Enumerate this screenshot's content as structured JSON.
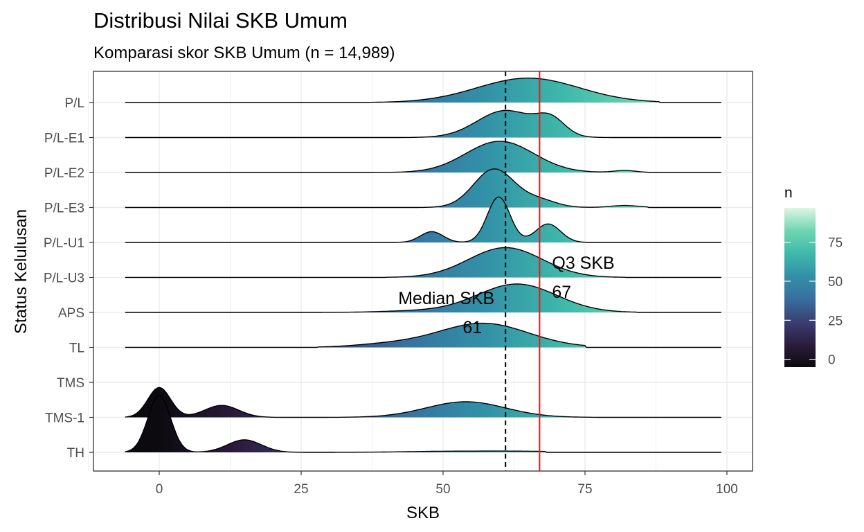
{
  "chart_data": {
    "type": "area",
    "subtype": "ridgeline",
    "title": "Distribusi Nilai SKB Umum",
    "subtitle": "Komparasi skor SKB Umum (n = 14,989)",
    "xlabel": "SKB",
    "ylabel": "Status Kelulusan",
    "xlim": [
      -15,
      105
    ],
    "x_ticks": [
      0,
      25,
      50,
      75,
      100
    ],
    "grid": true,
    "categories": [
      "P/L",
      "P/L-E1",
      "P/L-E2",
      "P/L-E3",
      "P/L-U1",
      "P/L-U3",
      "APS",
      "TL",
      "TMS",
      "TMS-1",
      "TH"
    ],
    "series": [
      {
        "category": "P/L",
        "baseline_range": [
          -6,
          99
        ],
        "peaks": [
          [
            65,
            9,
            0.86
          ]
        ],
        "support": [
          37,
          88
        ]
      },
      {
        "category": "P/L-E1",
        "baseline_range": [
          -6,
          99
        ],
        "peaks": [
          [
            61,
            5,
            0.95
          ],
          [
            69,
            2.5,
            0.55
          ]
        ],
        "support": [
          43,
          80
        ]
      },
      {
        "category": "P/L-E2",
        "baseline_range": [
          -6,
          99
        ],
        "peaks": [
          [
            60,
            6,
            1.1
          ],
          [
            82,
            2,
            0.07
          ]
        ],
        "support": [
          35,
          86
        ]
      },
      {
        "category": "P/L-E3",
        "baseline_range": [
          -6,
          99
        ],
        "peaks": [
          [
            59,
            3.6,
            1.35
          ],
          [
            67,
            3,
            0.25
          ],
          [
            82,
            2.5,
            0.07
          ]
        ],
        "support": [
          45,
          86
        ]
      },
      {
        "category": "P/L-U1",
        "baseline_range": [
          -6,
          99
        ],
        "peaks": [
          [
            59.8,
            2,
            1.6
          ],
          [
            48,
            2,
            0.38
          ],
          [
            68.5,
            2.2,
            0.65
          ]
        ],
        "support": [
          42,
          75
        ]
      },
      {
        "category": "P/L-U3",
        "baseline_range": [
          -6,
          99
        ],
        "peaks": [
          [
            61,
            6.5,
            1.05
          ]
        ],
        "support": [
          40,
          82
        ]
      },
      {
        "category": "APS",
        "baseline_range": [
          -6,
          99
        ],
        "peaks": [
          [
            63,
            7,
            1.0
          ],
          [
            45,
            6,
            0.05
          ]
        ],
        "support": [
          25,
          84
        ]
      },
      {
        "category": "TL",
        "baseline_range": [
          -6,
          99
        ],
        "peaks": [
          [
            57,
            8,
            0.85
          ],
          [
            40,
            6,
            0.1
          ]
        ],
        "support": [
          28,
          75
        ]
      },
      {
        "category": "TMS",
        "baseline_range": null,
        "peaks": [],
        "support": null
      },
      {
        "category": "TMS-1",
        "baseline_range": [
          -6,
          99
        ],
        "peaks": [
          [
            0,
            2,
            1.05
          ],
          [
            11,
            3,
            0.42
          ],
          [
            54,
            7,
            0.55
          ]
        ],
        "support": [
          -6,
          77
        ]
      },
      {
        "category": "TH",
        "baseline_range": [
          -6,
          99
        ],
        "peaks": [
          [
            0,
            2,
            2.0
          ],
          [
            15,
            3,
            0.44
          ],
          [
            52,
            8,
            0.04
          ],
          [
            65,
            6,
            0.03
          ]
        ],
        "support": [
          -6,
          68
        ]
      }
    ],
    "reference_lines": [
      {
        "x": 61,
        "style": "dashed",
        "color": "#000000",
        "label": "Median SKB",
        "value_label": "61"
      },
      {
        "x": 67,
        "style": "solid",
        "color": "#e31a1c",
        "label": "Q3 SKB",
        "value_label": "67"
      }
    ],
    "color_scale": {
      "variable": "n",
      "title": "n",
      "domain": [
        -5,
        97
      ],
      "ticks": [
        0,
        25,
        50,
        75
      ],
      "stops": [
        "#0d0a0f",
        "#2b1d3f",
        "#3b3f72",
        "#3770a0",
        "#3290a7",
        "#3fb9aa",
        "#6fd6b1",
        "#dff5e3"
      ]
    }
  }
}
